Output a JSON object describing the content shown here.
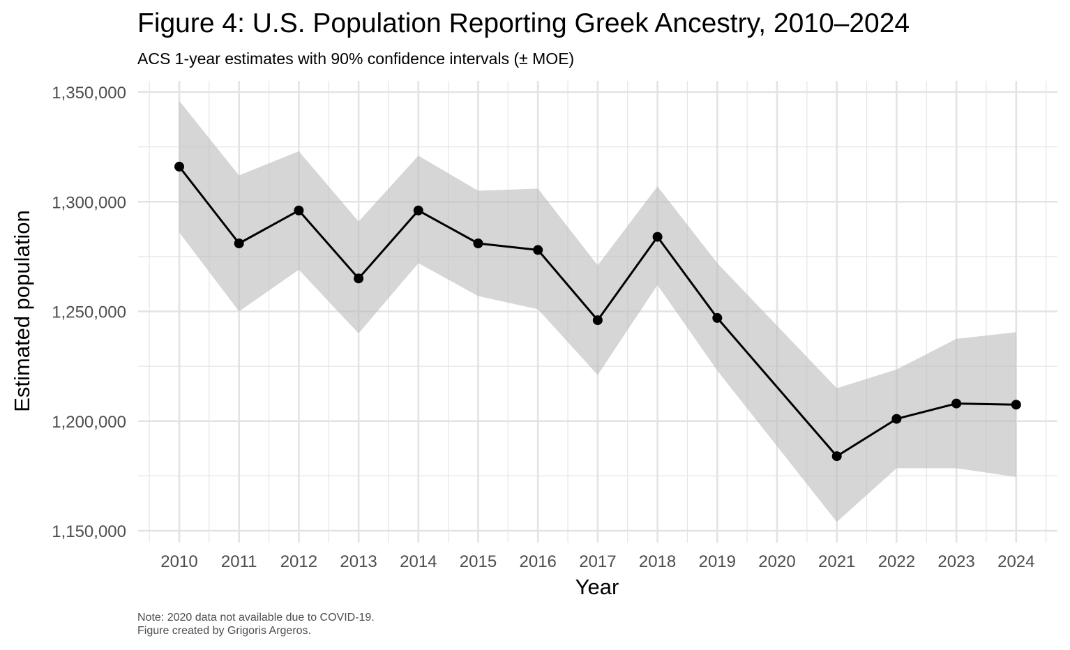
{
  "title": "Figure 4: U.S. Population Reporting Greek Ancestry, 2010–2024",
  "subtitle": "ACS 1-year estimates with 90% confidence intervals (± MOE)",
  "caption_line1": "Note: 2020 data not available due to COVID-19.",
  "caption_line2": "Figure created by Grigoris Argeros.",
  "colors": {
    "line": "#000000",
    "ribbon": "#bdbdbd",
    "grid": "#e5e5e5"
  },
  "chart_data": {
    "type": "line",
    "title": "Figure 4: U.S. Population Reporting Greek Ancestry, 2010–2024",
    "xlabel": "Year",
    "ylabel": "Estimated population",
    "x_ticks": [
      2010,
      2011,
      2012,
      2013,
      2014,
      2015,
      2016,
      2017,
      2018,
      2019,
      2020,
      2021,
      2022,
      2023,
      2024
    ],
    "x_tick_labels": [
      "2010",
      "2011",
      "2012",
      "2013",
      "2014",
      "2015",
      "2016",
      "2017",
      "2018",
      "2019",
      "2020",
      "2021",
      "2022",
      "2023",
      "2024"
    ],
    "xlim": [
      2009.5,
      2024.7
    ],
    "y_ticks": [
      1150000,
      1200000,
      1250000,
      1300000,
      1350000
    ],
    "y_tick_labels": [
      "1,150,000",
      "1,200,000",
      "1,250,000",
      "1,300,000",
      "1,350,000"
    ],
    "ylim": [
      1147000,
      1355000
    ],
    "grid": true,
    "series": [
      {
        "name": "Estimate",
        "x": [
          2010,
          2011,
          2012,
          2013,
          2014,
          2015,
          2016,
          2017,
          2018,
          2019,
          2021,
          2022,
          2023,
          2024
        ],
        "values": [
          1316000,
          1281000,
          1296000,
          1265000,
          1296000,
          1281000,
          1278000,
          1246000,
          1284000,
          1247000,
          1184000,
          1201000,
          1208000,
          1207500
        ],
        "lower": [
          1286000,
          1250000,
          1269000,
          1240000,
          1272000,
          1257000,
          1251000,
          1221000,
          1262000,
          1223000,
          1154000,
          1178500,
          1178500,
          1174500
        ],
        "upper": [
          1346000,
          1312000,
          1323000,
          1291000,
          1321000,
          1305000,
          1306000,
          1271000,
          1307000,
          1272000,
          1215000,
          1223500,
          1237500,
          1240500
        ]
      }
    ]
  }
}
